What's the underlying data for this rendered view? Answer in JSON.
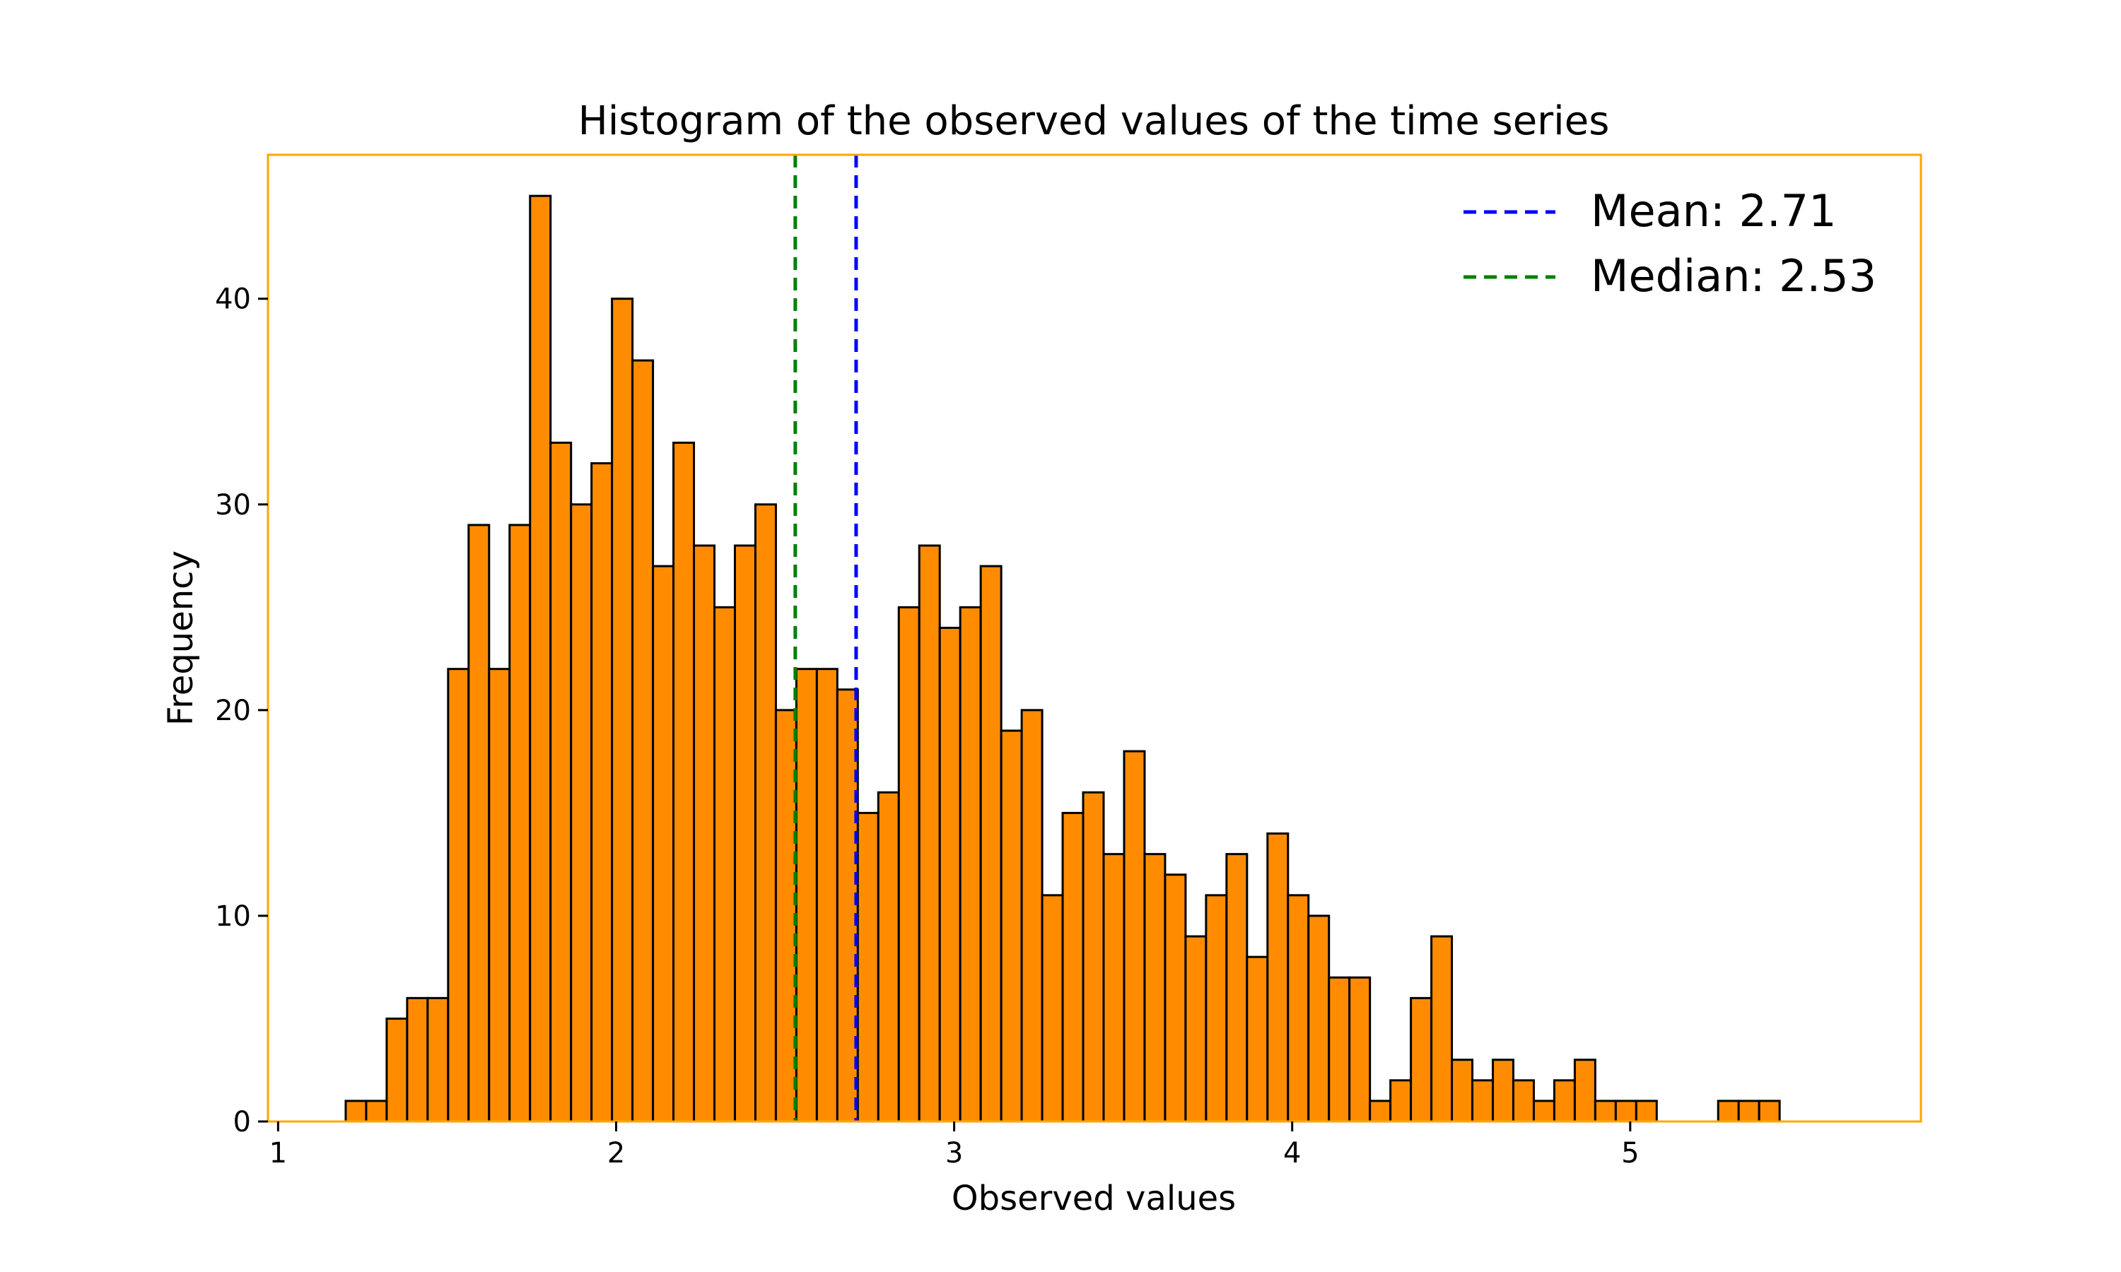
{
  "chart_data": {
    "type": "bar",
    "title": "Histogram of the observed values of the time series",
    "xlabel": "Observed values",
    "ylabel": "Frequency",
    "xlim": [
      0.97,
      5.86
    ],
    "ylim": [
      0,
      47
    ],
    "xticks": [
      1,
      2,
      3,
      4,
      5
    ],
    "yticks": [
      0,
      10,
      20,
      30,
      40
    ],
    "bin_start": 1.2,
    "bin_width": 0.0606,
    "values": [
      1,
      1,
      5,
      6,
      6,
      22,
      29,
      22,
      29,
      45,
      33,
      30,
      32,
      40,
      37,
      27,
      33,
      28,
      25,
      28,
      30,
      20,
      22,
      22,
      21,
      15,
      16,
      25,
      28,
      24,
      25,
      27,
      19,
      20,
      11,
      15,
      16,
      13,
      18,
      13,
      12,
      9,
      11,
      13,
      8,
      14,
      11,
      10,
      7,
      7,
      1,
      2,
      6,
      9,
      3,
      2,
      3,
      2,
      1,
      2,
      3,
      1,
      1,
      1,
      0,
      0,
      0,
      1,
      1,
      1
    ],
    "mean": 2.71,
    "median": 2.53,
    "legend": [
      {
        "label": "Mean: 2.71",
        "color": "#0000ff"
      },
      {
        "label": "Median: 2.53",
        "color": "#008000"
      }
    ],
    "legend_position": "top-right",
    "bar_color": "#ff8c00",
    "bar_edge_color": "#000000",
    "frame_color": "#ffa500",
    "grid": false
  }
}
